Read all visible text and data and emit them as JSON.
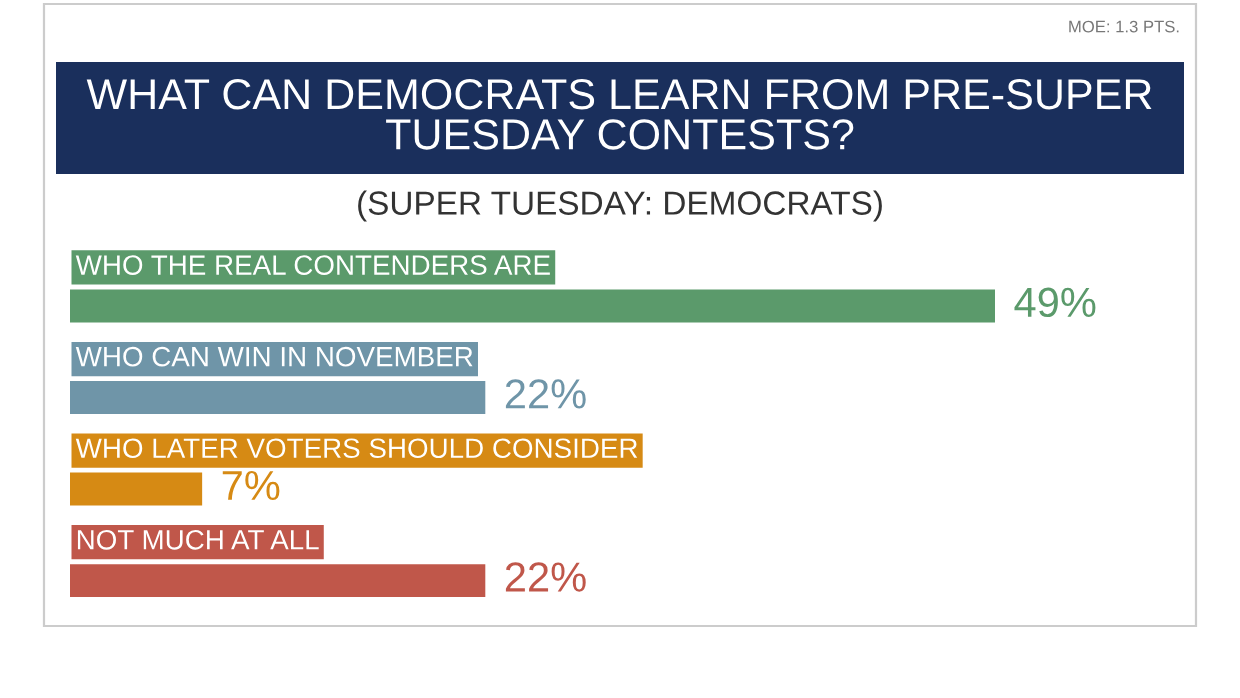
{
  "chart_data": {
    "type": "bar",
    "orientation": "horizontal",
    "title": "WHAT CAN DEMOCRATS LEARN FROM PRE-SUPER TUESDAY CONTESTS?",
    "subtitle": "(SUPER TUESDAY: DEMOCRATS)",
    "annotations": [
      "MOE: 1.3 PTS."
    ],
    "categories": [
      "WHO THE REAL CONTENDERS ARE",
      "WHO CAN WIN IN NOVEMBER",
      "WHO LATER VOTERS SHOULD CONSIDER",
      "NOT MUCH AT ALL"
    ],
    "values": [
      49,
      22,
      7,
      22
    ],
    "colors": [
      "#5b9a6b",
      "#6f95a8",
      "#d68a14",
      "#c0574a"
    ],
    "value_labels": [
      "49%",
      "22%",
      "7%",
      "22%"
    ]
  }
}
